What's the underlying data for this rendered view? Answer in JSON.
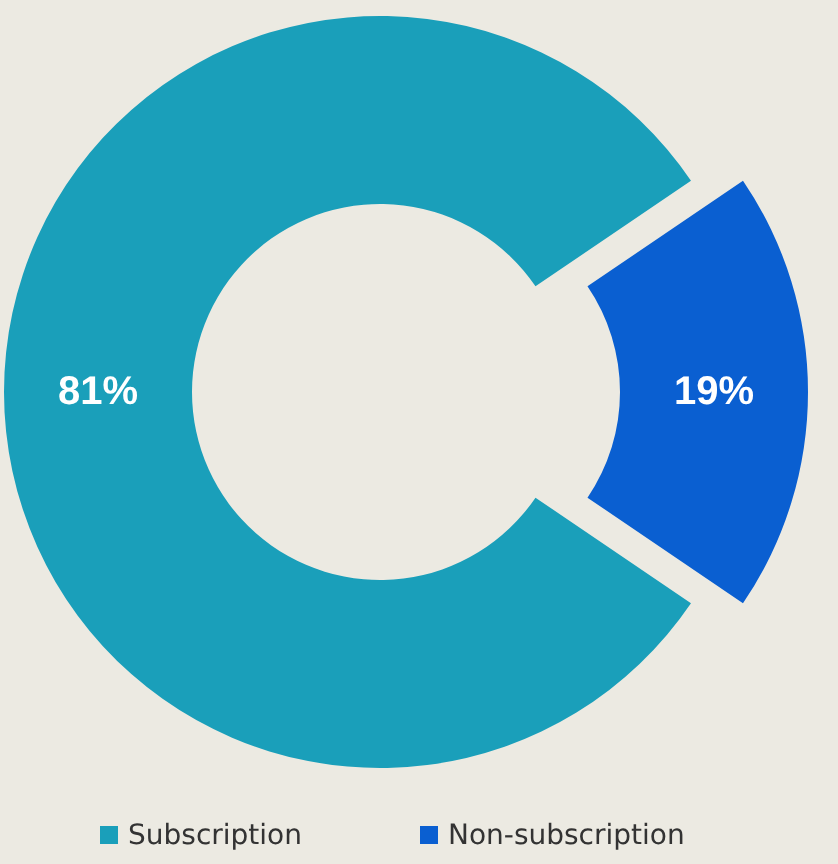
{
  "chart_data": {
    "type": "donut",
    "categories": [
      "Subscription",
      "Non-subscription"
    ],
    "values": [
      81,
      19
    ],
    "colors": [
      "#1a9fba",
      "#0a5fd1"
    ],
    "value_labels": [
      "81%",
      "19%"
    ],
    "legend": "bottom"
  }
}
